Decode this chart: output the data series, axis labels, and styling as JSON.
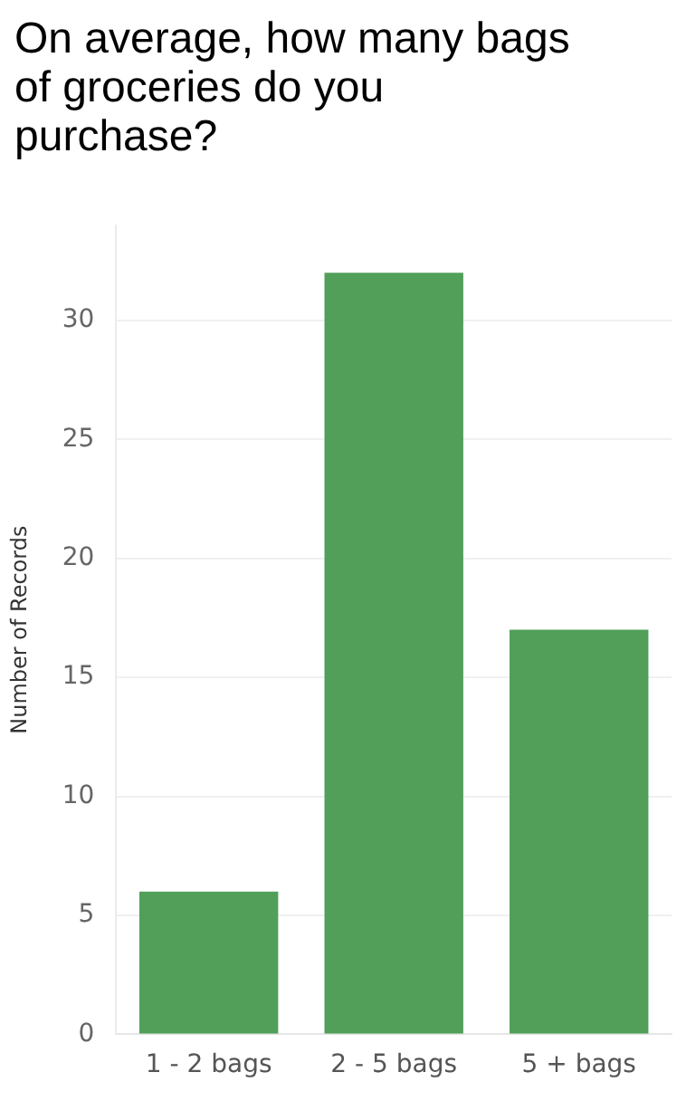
{
  "chart_data": {
    "type": "bar",
    "title": "On average, how many bags of groceries do you purchase?",
    "ylabel": "Number of Records",
    "categories": [
      "1 - 2 bags",
      "2 - 5 bags",
      "5 + bags"
    ],
    "values": [
      6,
      32,
      17
    ],
    "color": "#519f59",
    "ylim": [
      0,
      34
    ],
    "yticks": [
      0,
      5,
      10,
      15,
      20,
      25,
      30
    ],
    "grid": "y",
    "legend": false
  }
}
